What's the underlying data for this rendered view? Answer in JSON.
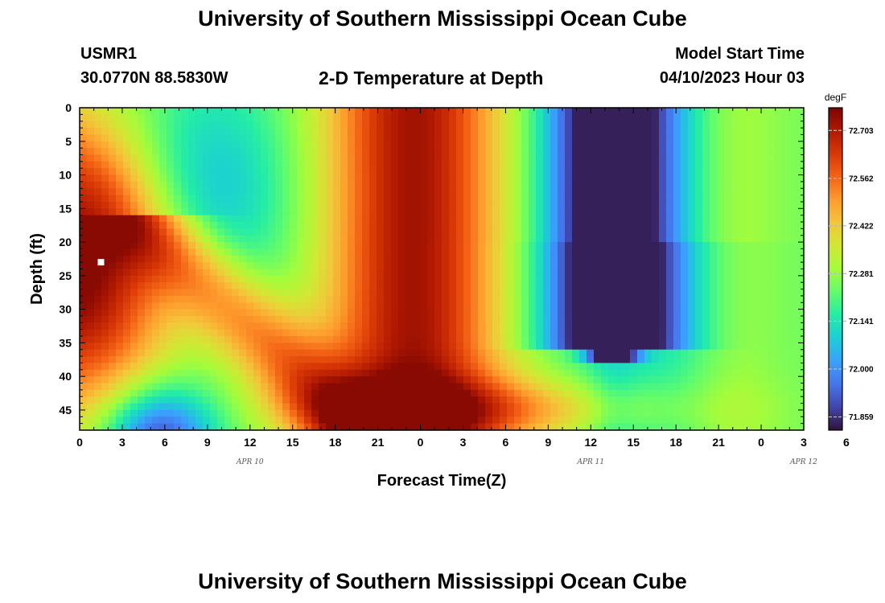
{
  "header": {
    "title": "University of Southern Mississippi Ocean Cube",
    "station_id": "USMR1",
    "coordinates": "30.0770N  88.5830W",
    "plot_title": "2-D Temperature at Depth",
    "model_start_label": "Model Start Time",
    "model_start_value": "04/10/2023 Hour 03"
  },
  "footer": {
    "title": "University of Southern Mississippi Ocean Cube"
  },
  "colors": {
    "colormap": [
      "#30123b",
      "#4145ab",
      "#4675ed",
      "#39a2fc",
      "#1bcfd4",
      "#24eca6",
      "#61fc6c",
      "#a4fc3b",
      "#d1e834",
      "#f3c63a",
      "#fe9b2d",
      "#f36315",
      "#d93806",
      "#b11901",
      "#7a0403"
    ]
  },
  "chart_data": {
    "type": "heatmap",
    "xlabel": "Forecast Time(Z)",
    "ylabel": "Depth (ft)",
    "xlim": [
      0,
      51
    ],
    "ylim": [
      0,
      48
    ],
    "x_ticks": [
      "0",
      "3",
      "6",
      "9",
      "12",
      "15",
      "18",
      "21",
      "0",
      "3",
      "6",
      "9",
      "12",
      "15",
      "18",
      "21",
      "0",
      "3",
      "6"
    ],
    "y_ticks": [
      "0",
      "5",
      "10",
      "15",
      "20",
      "25",
      "30",
      "35",
      "40",
      "45"
    ],
    "date_labels": [
      {
        "text": "APR 10",
        "hour": 12
      },
      {
        "text": "APR 11",
        "hour": 36
      },
      {
        "text": "APR 12",
        "hour": 51
      }
    ],
    "colorbar": {
      "unit": "degF",
      "min": 71.82,
      "max": 72.77,
      "labels": [
        "72.703",
        "72.562",
        "72.422",
        "72.281",
        "72.141",
        "72.000",
        "71.859"
      ]
    },
    "marker": {
      "hour": 1.5,
      "depth": 23
    },
    "grid": false
  }
}
